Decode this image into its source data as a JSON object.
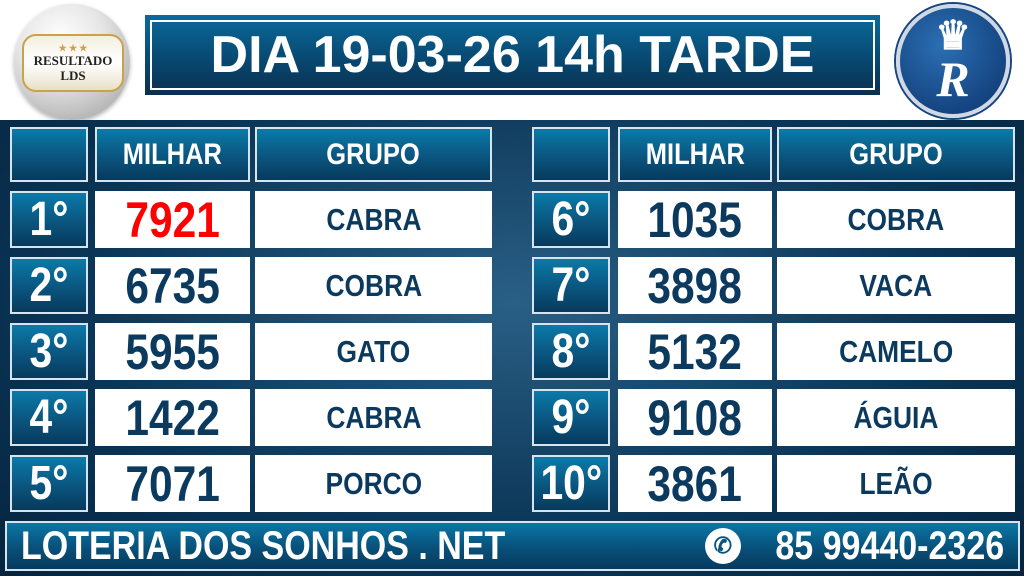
{
  "logo_left": {
    "text_line1": "RESULTADO",
    "text_line2": "LDS"
  },
  "logo_right": {
    "text": "Rei",
    "letter": "R"
  },
  "title": "DIA 19-03-26 14h TARDE",
  "headers": {
    "milhar": "MILHAR",
    "grupo": "GRUPO"
  },
  "results": [
    {
      "rank": "1°",
      "milhar": "7921",
      "grupo": "CABRA"
    },
    {
      "rank": "2°",
      "milhar": "6735",
      "grupo": "COBRA"
    },
    {
      "rank": "3°",
      "milhar": "5955",
      "grupo": "GATO"
    },
    {
      "rank": "4°",
      "milhar": "1422",
      "grupo": "CABRA"
    },
    {
      "rank": "5°",
      "milhar": "7071",
      "grupo": "PORCO"
    },
    {
      "rank": "6°",
      "milhar": "1035",
      "grupo": "COBRA"
    },
    {
      "rank": "7°",
      "milhar": "3898",
      "grupo": "VACA"
    },
    {
      "rank": "8°",
      "milhar": "5132",
      "grupo": "CAMELO"
    },
    {
      "rank": "9°",
      "milhar": "9108",
      "grupo": "ÁGUIA"
    },
    {
      "rank": "10°",
      "milhar": "3861",
      "grupo": "LEÃO"
    }
  ],
  "footer": {
    "site": "LOTERIA DOS SONHOS . NET",
    "phone": "85 99440-2326",
    "phone_icon": "whatsapp-icon"
  },
  "colors": {
    "navy": "#0b3a5e",
    "highlight": "#ff0000",
    "header_blue": "#0a557f"
  }
}
